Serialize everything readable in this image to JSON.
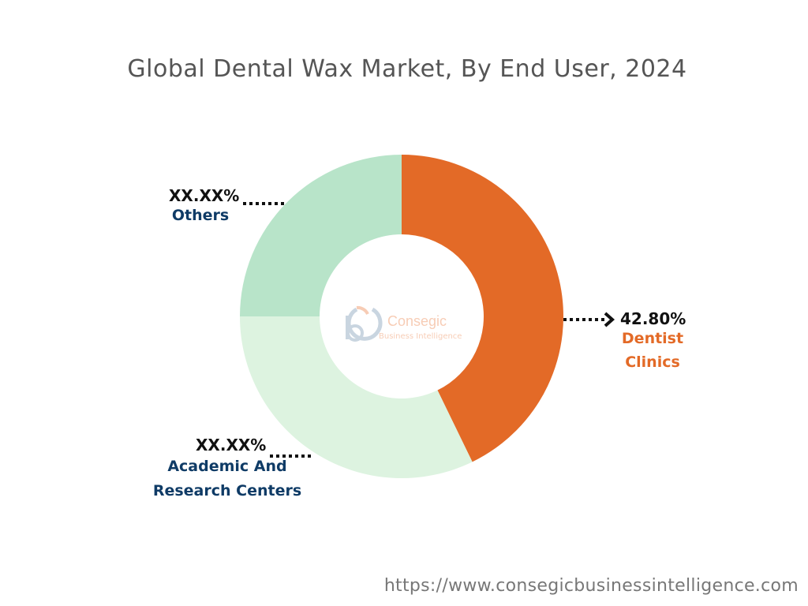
{
  "title": "Global Dental Wax Market, By End User, 2024",
  "footer_url": "https://www.consegicbusinessintelligence.com",
  "logo": {
    "name": "Consegic",
    "tagline": "Business Intelligence"
  },
  "colors": {
    "dentist_clinics": "#E36A27",
    "academic": "#DDF3E0",
    "others": "#B8E4C9",
    "label_blue": "#0F3B66",
    "label_orange": "#E36A27"
  },
  "chart_data": {
    "type": "pie",
    "donut": true,
    "title": "Global Dental Wax Market, By End User, 2024",
    "slices": [
      {
        "label": "Dentist Clinics",
        "value_label": "42.80%",
        "value": 42.8
      },
      {
        "label": "Academic And Research Centers",
        "value_label": "XX.XX%",
        "value": 32.2
      },
      {
        "label": "Others",
        "value_label": "XX.XX%",
        "value": 25.0
      }
    ]
  },
  "labels": {
    "dentist": {
      "pct": "42.80%",
      "name": "Dentist Clinics"
    },
    "academic": {
      "pct": "XX.XX%",
      "name_line1": "Academic And",
      "name_line2": "Research Centers"
    },
    "others": {
      "pct": "XX.XX%",
      "name": "Others"
    }
  }
}
